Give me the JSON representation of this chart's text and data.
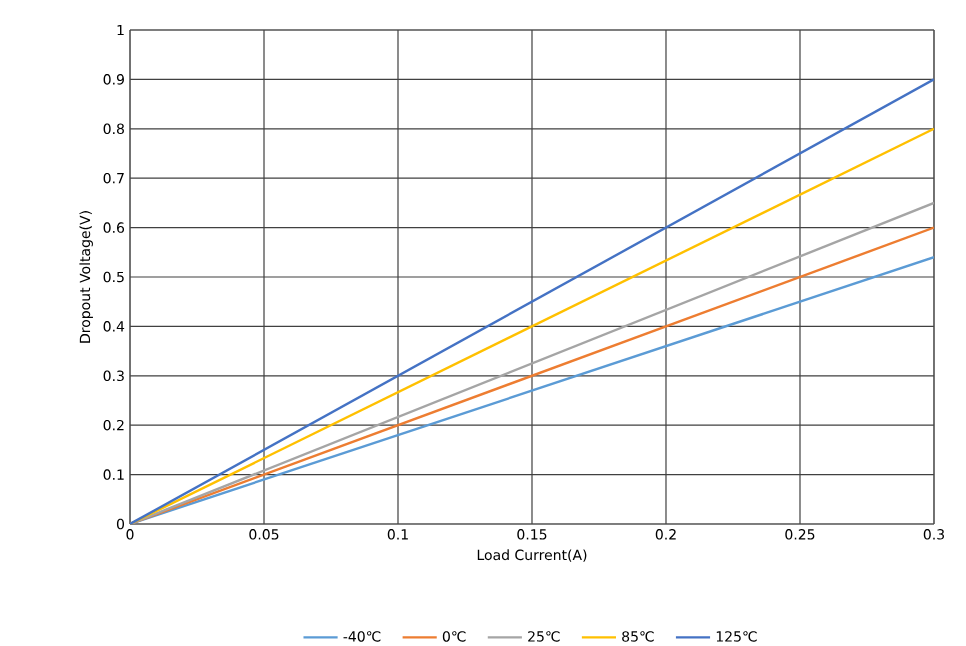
{
  "chart_data": {
    "type": "line",
    "xlabel": "Load Current(A)",
    "ylabel": "Dropout Voltage(V)",
    "x": [
      0,
      0.3
    ],
    "series": [
      {
        "name": "-40℃",
        "color": "#5b9bd5",
        "values": [
          0,
          0.54
        ]
      },
      {
        "name": "0℃",
        "color": "#ed7d31",
        "values": [
          0,
          0.6
        ]
      },
      {
        "name": "25℃",
        "color": "#a5a5a5",
        "values": [
          0,
          0.65
        ]
      },
      {
        "name": "85℃",
        "color": "#ffc000",
        "values": [
          0,
          0.8
        ]
      },
      {
        "name": "125℃",
        "color": "#4472c4",
        "values": [
          0,
          0.9
        ]
      }
    ],
    "xlim": [
      0,
      0.3
    ],
    "ylim": [
      0,
      1
    ],
    "xticks": [
      0,
      0.05,
      0.1,
      0.15,
      0.2,
      0.25,
      0.3
    ],
    "yticks": [
      0,
      0.1,
      0.2,
      0.3,
      0.4,
      0.5,
      0.6,
      0.7,
      0.8,
      0.9,
      1
    ],
    "grid": true,
    "legend": "bottom",
    "marker": "none",
    "line_style": "solid"
  }
}
